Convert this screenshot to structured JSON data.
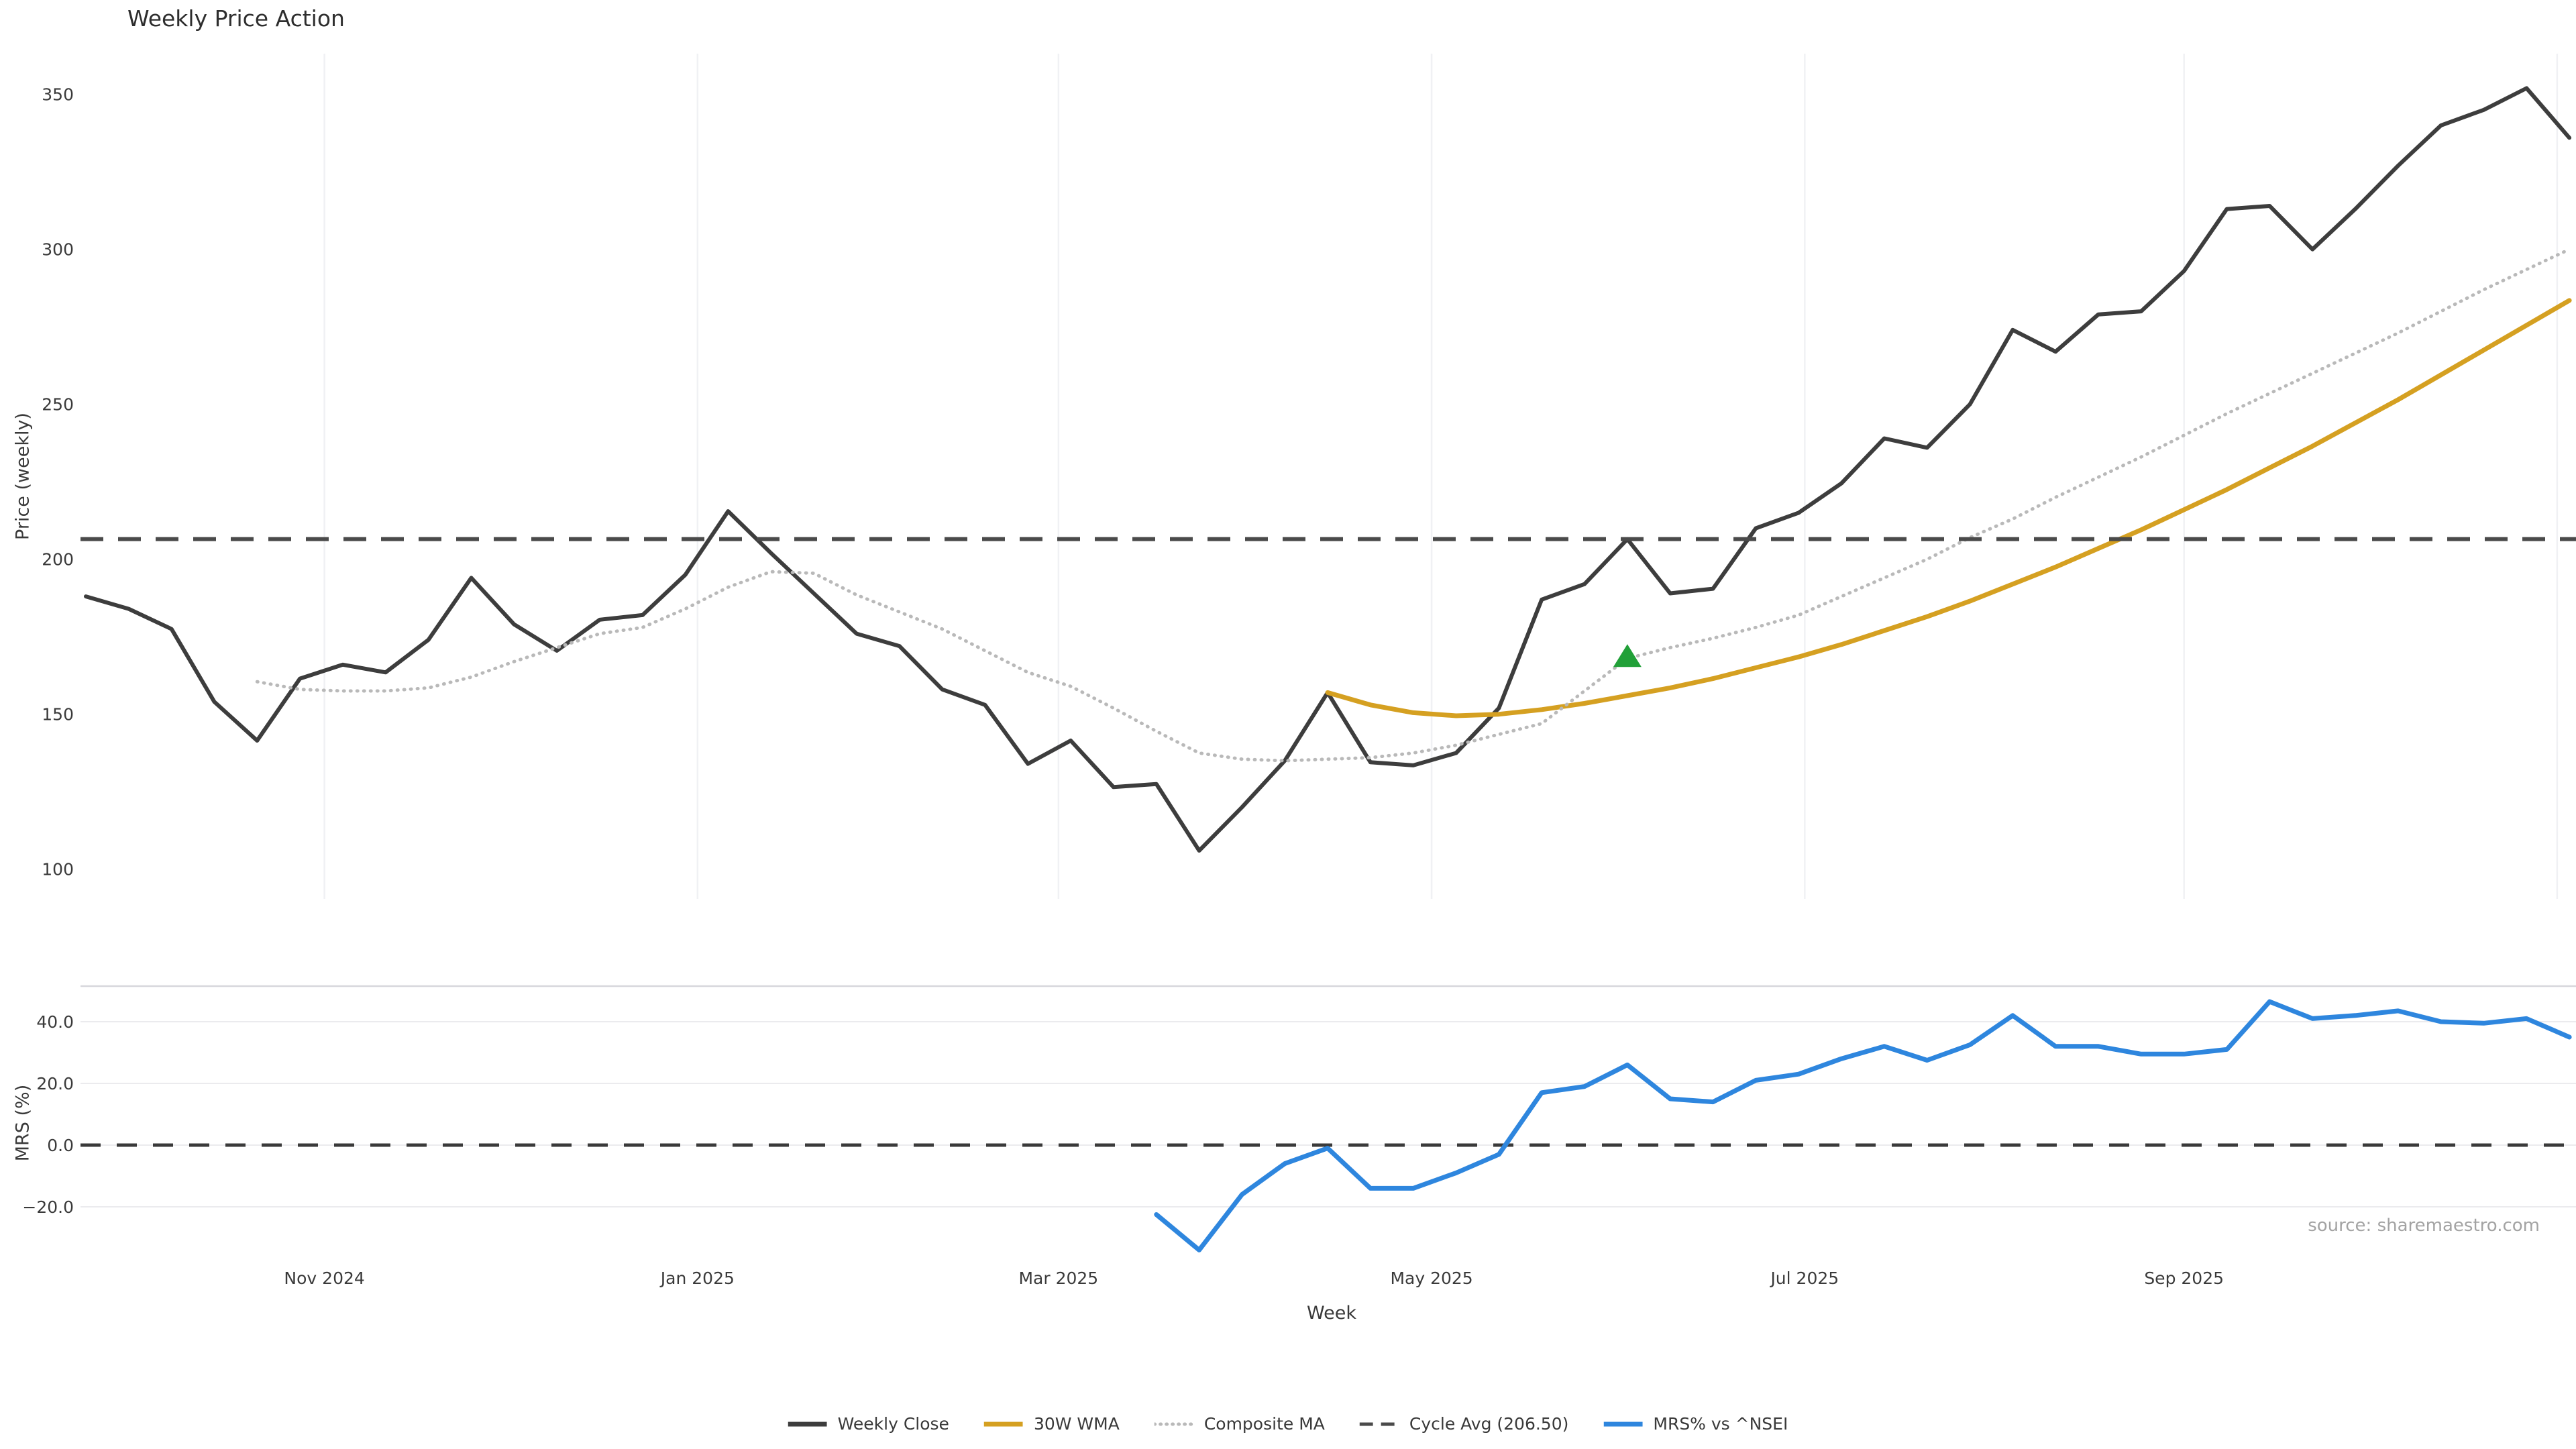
{
  "title": "Weekly Price Action",
  "source_note": "source: sharemaestro.com",
  "chart_data": {
    "type": "line",
    "title": "Weekly Price Action",
    "x_label": "Week",
    "start_date": "2024-09-23",
    "week_interval_days": 7,
    "grid": "vertical-on-price-panel, horizontal-on-mrs-panel",
    "legend_position": "bottom-center",
    "cycle_avg": 206.5,
    "price_axis": {
      "label": "Price (weekly)",
      "ticks": [
        100,
        150,
        200,
        250,
        300,
        350
      ],
      "ylim": [
        88,
        363
      ]
    },
    "mrs_axis": {
      "label": "MRS (%)",
      "ticks": [
        -20,
        0,
        20,
        40
      ],
      "ylim": [
        -37,
        51.5
      ]
    },
    "x_ticks": [
      {
        "label": "Nov 2024",
        "date": "2024-11-01"
      },
      {
        "label": "Jan 2025",
        "date": "2025-01-01"
      },
      {
        "label": "Mar 2025",
        "date": "2025-03-01"
      },
      {
        "label": "May 2025",
        "date": "2025-05-01"
      },
      {
        "label": "Jul 2025",
        "date": "2025-07-01"
      },
      {
        "label": "Sep 2025",
        "date": "2025-09-01"
      },
      {
        "label": "",
        "date": "2025-11-01"
      }
    ],
    "weeks": [
      "2024-09-23",
      "2024-09-30",
      "2024-10-07",
      "2024-10-14",
      "2024-10-21",
      "2024-10-28",
      "2024-11-04",
      "2024-11-11",
      "2024-11-18",
      "2024-11-25",
      "2024-12-02",
      "2024-12-09",
      "2024-12-16",
      "2024-12-23",
      "2024-12-30",
      "2025-01-06",
      "2025-01-13",
      "2025-01-20",
      "2025-01-27",
      "2025-02-03",
      "2025-02-10",
      "2025-02-17",
      "2025-02-24",
      "2025-03-03",
      "2025-03-10",
      "2025-03-17",
      "2025-03-24",
      "2025-03-31",
      "2025-04-07",
      "2025-04-14",
      "2025-04-21",
      "2025-04-28",
      "2025-05-05",
      "2025-05-12",
      "2025-05-19",
      "2025-05-26",
      "2025-06-02",
      "2025-06-09",
      "2025-06-16",
      "2025-06-23",
      "2025-06-30",
      "2025-07-07",
      "2025-07-14",
      "2025-07-21",
      "2025-07-28",
      "2025-08-04",
      "2025-08-11",
      "2025-08-18",
      "2025-08-25",
      "2025-09-01",
      "2025-09-08",
      "2025-09-15",
      "2025-09-22",
      "2025-09-29",
      "2025-10-06",
      "2025-10-13",
      "2025-10-20",
      "2025-10-27",
      "2025-11-03"
    ],
    "series": [
      {
        "name": "Weekly Close",
        "panel": "price",
        "style": "solid",
        "color": "#3d3d3d",
        "width": 6,
        "values": [
          188,
          184,
          177.5,
          154,
          141.5,
          161.5,
          166,
          163.5,
          174,
          194,
          179,
          170.5,
          180.5,
          182,
          195,
          215.5,
          202,
          189,
          176,
          172,
          158,
          153,
          134,
          141.5,
          126.5,
          127.5,
          106,
          120,
          135,
          157,
          134.5,
          133.5,
          137.5,
          152,
          187,
          192,
          206.5,
          189,
          190.5,
          210,
          215,
          224.5,
          239,
          236,
          250,
          274,
          267,
          279,
          280,
          293,
          313,
          314,
          300,
          313,
          327,
          340,
          345,
          352,
          336
        ]
      },
      {
        "name": "30W WMA",
        "panel": "price",
        "style": "solid",
        "color": "#d5a021",
        "width": 7,
        "values": [
          null,
          null,
          null,
          null,
          null,
          null,
          null,
          null,
          null,
          null,
          null,
          null,
          null,
          null,
          null,
          null,
          null,
          null,
          null,
          null,
          null,
          null,
          null,
          null,
          null,
          null,
          null,
          null,
          null,
          157,
          153,
          150.5,
          149.5,
          150,
          151.5,
          153.5,
          156,
          158.5,
          161.5,
          165,
          168.5,
          172.5,
          177,
          181.5,
          186.5,
          192,
          197.5,
          203.5,
          209.5,
          216,
          222.5,
          229.5,
          236.5,
          244,
          251.5,
          259.5,
          267.5,
          275.5,
          283.5
        ]
      },
      {
        "name": "Composite MA",
        "panel": "price",
        "style": "dotted",
        "color": "#b9b9b9",
        "width": 5,
        "values": [
          null,
          null,
          null,
          null,
          160.5,
          158,
          157.5,
          157.5,
          158.5,
          162,
          167,
          171.5,
          176,
          178,
          184,
          191,
          196,
          195.5,
          188.5,
          183,
          177.5,
          170.5,
          163.5,
          159,
          152,
          144.5,
          137.5,
          135.5,
          135,
          135.5,
          136,
          137.5,
          140,
          143.5,
          147,
          157.5,
          168,
          171.5,
          174.5,
          178,
          182,
          188,
          194,
          200,
          207,
          213,
          220,
          226.5,
          233,
          240,
          247,
          253.5,
          260,
          266.5,
          273,
          280,
          287,
          293.5,
          300
        ]
      },
      {
        "name": "Cycle Avg (206.50)",
        "panel": "price",
        "style": "dashed",
        "color": "#4a4a4a",
        "width": 6,
        "constant": 206.5
      },
      {
        "name": "MRS% vs ^NSEI",
        "panel": "mrs",
        "style": "solid",
        "color": "#2e86de",
        "width": 7,
        "values": [
          null,
          null,
          null,
          null,
          null,
          null,
          null,
          null,
          null,
          null,
          null,
          null,
          null,
          null,
          null,
          null,
          null,
          null,
          null,
          null,
          null,
          null,
          null,
          null,
          null,
          -22.5,
          -34,
          -16,
          -6,
          -1,
          -14,
          -14,
          -9,
          -3,
          17,
          19,
          26,
          15,
          14,
          21,
          23,
          28,
          32,
          27.5,
          32.5,
          42,
          32,
          32,
          29.5,
          29.5,
          31,
          46.5,
          41,
          42,
          43.5,
          40,
          39.5,
          41,
          35
        ]
      }
    ],
    "markers": [
      {
        "type": "triangle-up",
        "color": "#21a038",
        "week_index": 36,
        "date": "2025-06-02",
        "value": 168.5
      }
    ],
    "zero_line": {
      "panel": "mrs",
      "value": 0,
      "style": "dashed",
      "color": "#3a3a3a"
    }
  }
}
